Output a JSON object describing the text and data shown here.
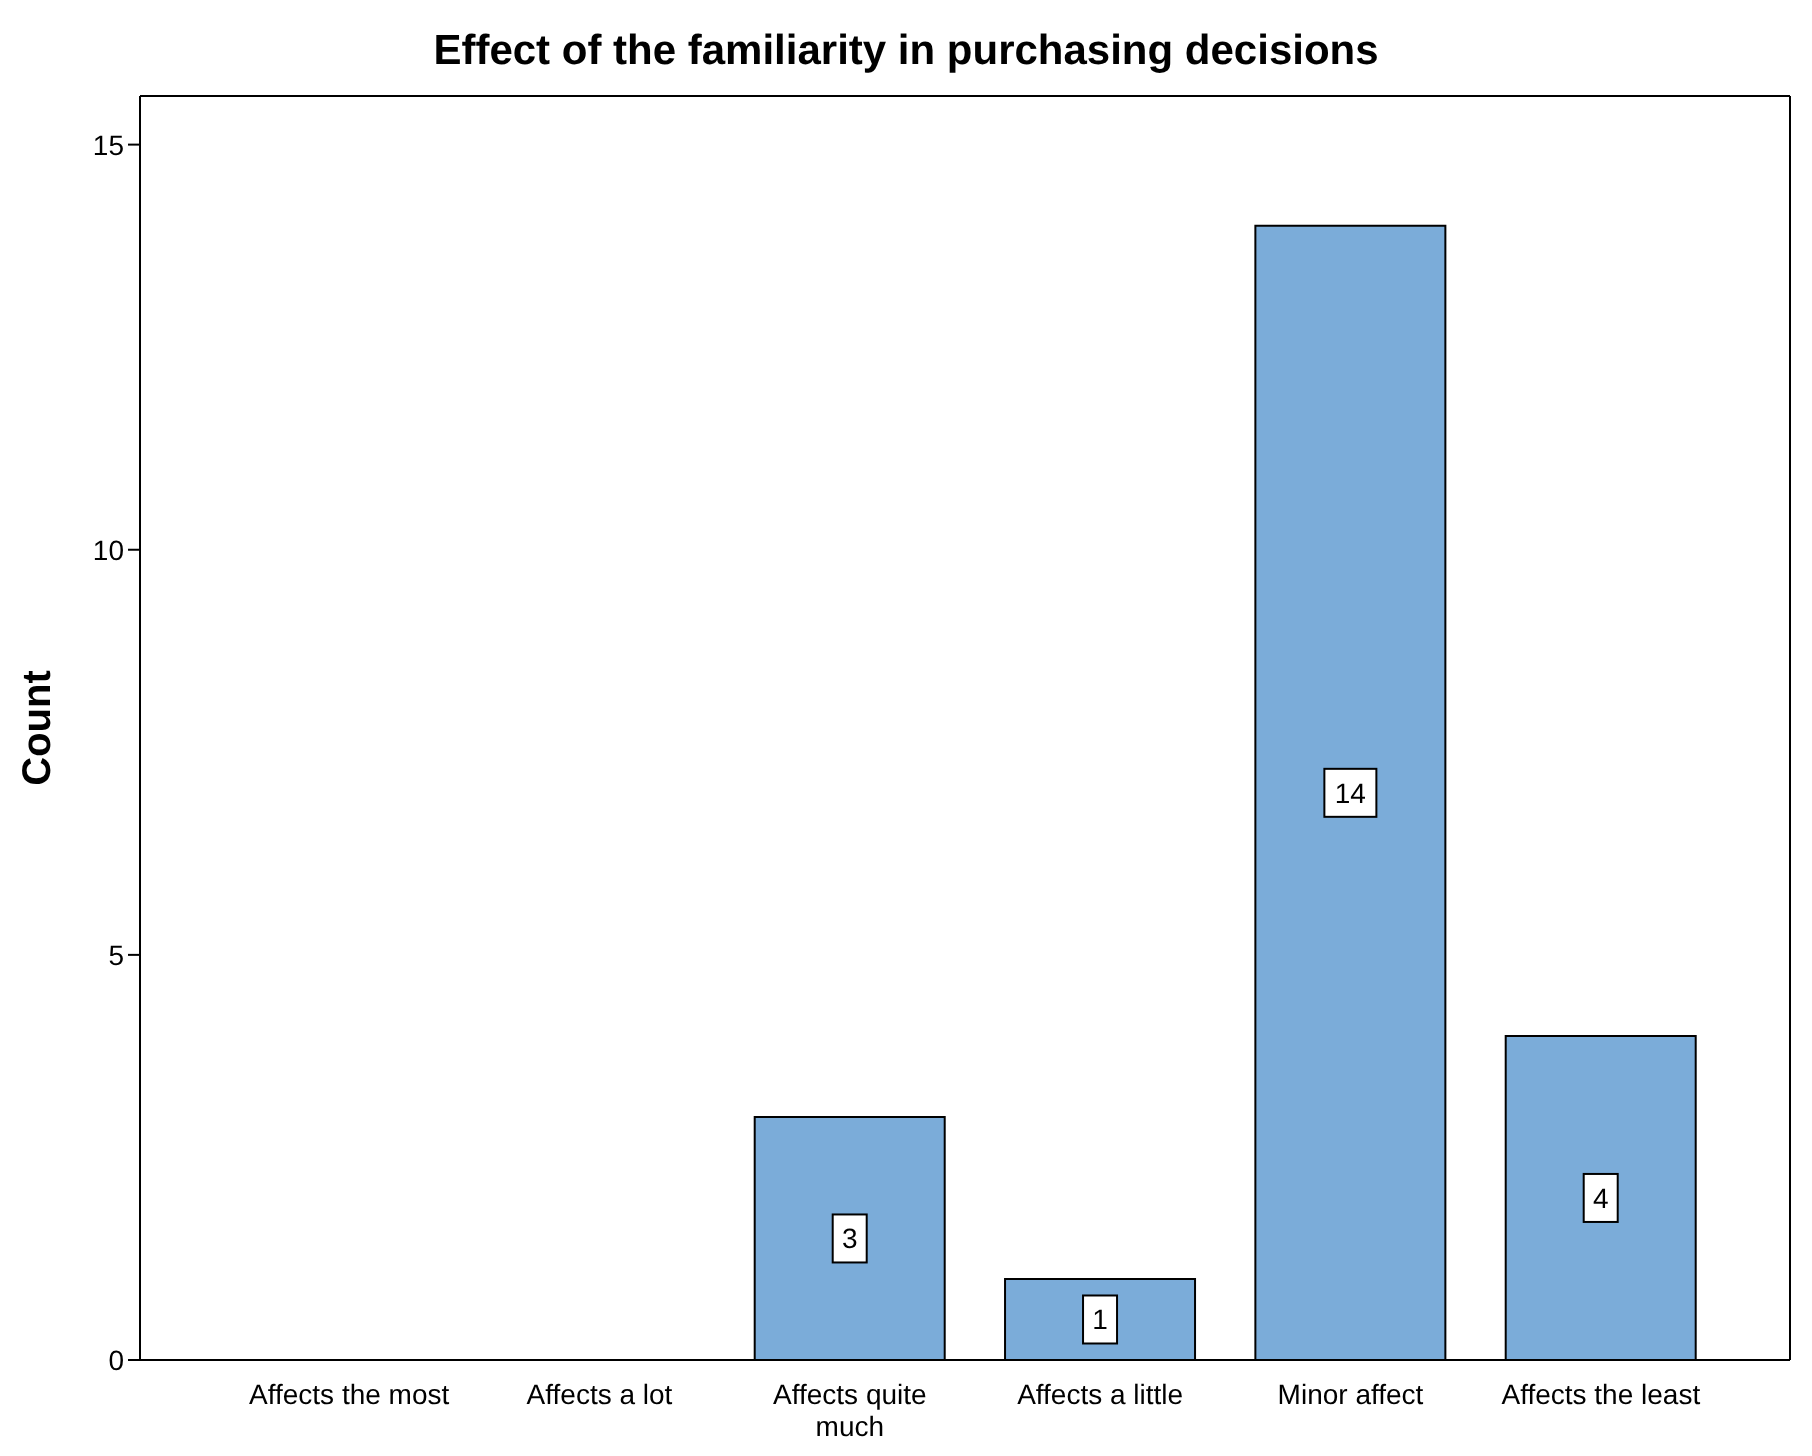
{
  "chart_data": {
    "type": "bar",
    "title": "Effect of the familiarity in purchasing decisions",
    "ylabel": "Count",
    "categories": [
      "Affects the most",
      "Affects a lot",
      "Affects quite much",
      "Affects a little",
      "Minor affect",
      "Affects the least"
    ],
    "values": [
      0,
      0,
      3,
      1,
      14,
      4
    ],
    "value_labels": [
      null,
      null,
      "3",
      "1",
      "14",
      "4"
    ],
    "color": "#7bacd9",
    "ylim": [
      0,
      15.6
    ],
    "yticks": [
      0,
      5,
      10,
      15
    ]
  }
}
